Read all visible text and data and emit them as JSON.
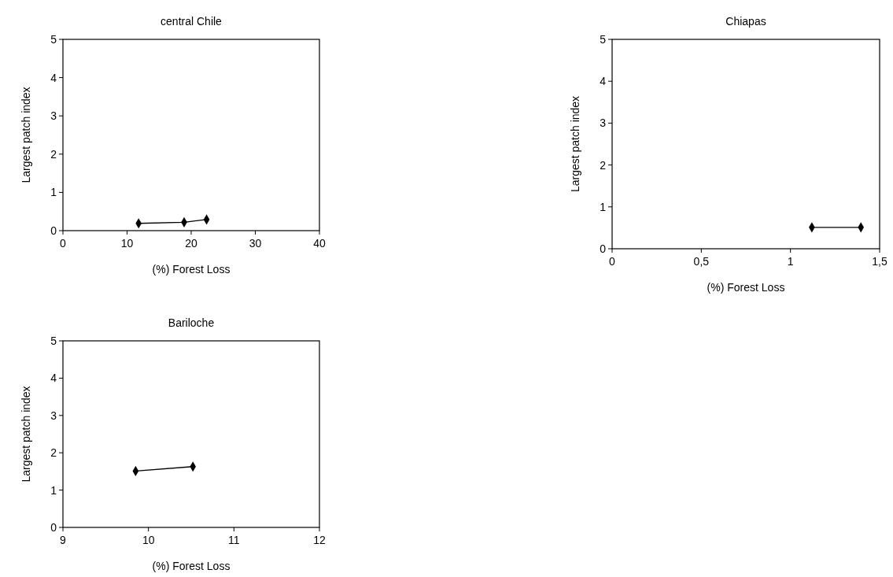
{
  "chart_data": [
    {
      "type": "line",
      "title": "central Chile",
      "xlabel": "(%) Forest Loss",
      "ylabel": "Largest patch index",
      "x": [
        11.8,
        18.9,
        22.4
      ],
      "series": [
        {
          "color": "#000000",
          "values": [
            0.19,
            0.22,
            0.29
          ]
        }
      ],
      "xlim": [
        0,
        40
      ],
      "xticks": [
        0,
        10,
        20,
        30,
        40
      ],
      "ylim": [
        0,
        5
      ],
      "yticks": [
        0,
        1,
        2,
        3,
        4,
        5
      ],
      "marker": "diamond"
    },
    {
      "type": "line",
      "title": "Chiapas",
      "xlabel": "(%) Forest Loss",
      "ylabel": "Largest patch index",
      "x": [
        1.12,
        1.395
      ],
      "series": [
        {
          "color": "#000000",
          "values": [
            0.51,
            0.51
          ]
        }
      ],
      "xlim": [
        0,
        1.5
      ],
      "xticks": [
        0,
        {
          "value": 0.5,
          "label": "0,5"
        },
        1,
        {
          "value": 1.5,
          "label": "1,5"
        }
      ],
      "ylim": [
        0,
        5
      ],
      "yticks": [
        0,
        1,
        2,
        3,
        4,
        5
      ],
      "marker": "diamond"
    },
    {
      "type": "line",
      "title": "Bariloche",
      "xlabel": "(%) Forest Loss",
      "ylabel": "Largest patch index",
      "x": [
        9.85,
        10.52
      ],
      "series": [
        {
          "color": "#000000",
          "values": [
            1.51,
            1.63
          ]
        }
      ],
      "xlim": [
        9,
        12
      ],
      "xticks": [
        9,
        10,
        11,
        12
      ],
      "ylim": [
        0,
        5
      ],
      "yticks": [
        0,
        1,
        2,
        3,
        4,
        5
      ],
      "marker": "diamond"
    }
  ]
}
